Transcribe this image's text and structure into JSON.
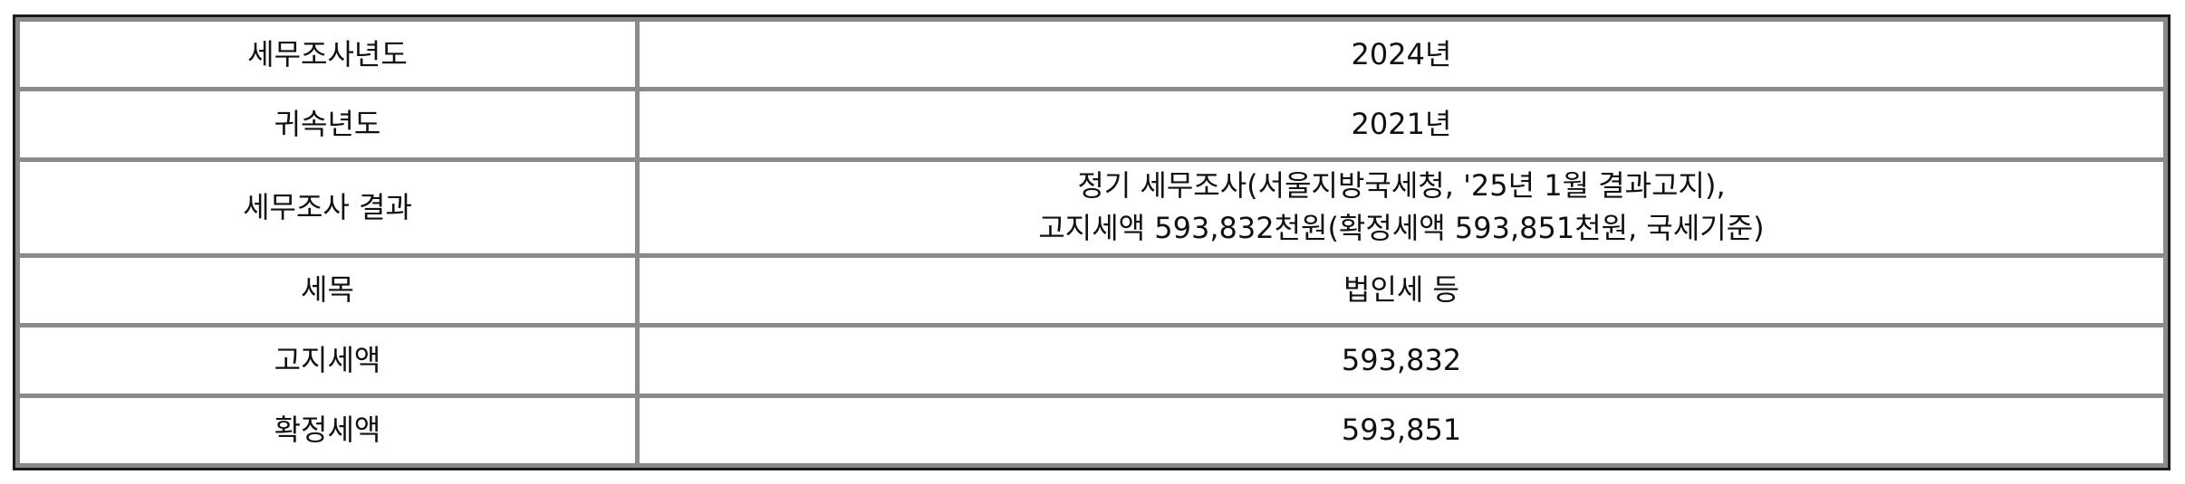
{
  "rows": [
    {
      "label": "세무조사년도",
      "value_lines": [
        "2024년"
      ]
    },
    {
      "label": "귀속년도",
      "value_lines": [
        "2021년"
      ]
    },
    {
      "label": "세무조사 결과",
      "value_lines": [
        "정기 세무조사(서울지방국세청, '25년 1월 결과고지),",
        "고지세액 593,832천원(확정세액 593,851천원, 국세기준)"
      ]
    },
    {
      "label": "세목",
      "value_lines": [
        "법인세 등"
      ]
    },
    {
      "label": "고지세액",
      "value_lines": [
        "593,832"
      ]
    },
    {
      "label": "확정세액",
      "value_lines": [
        "593,851"
      ]
    }
  ]
}
